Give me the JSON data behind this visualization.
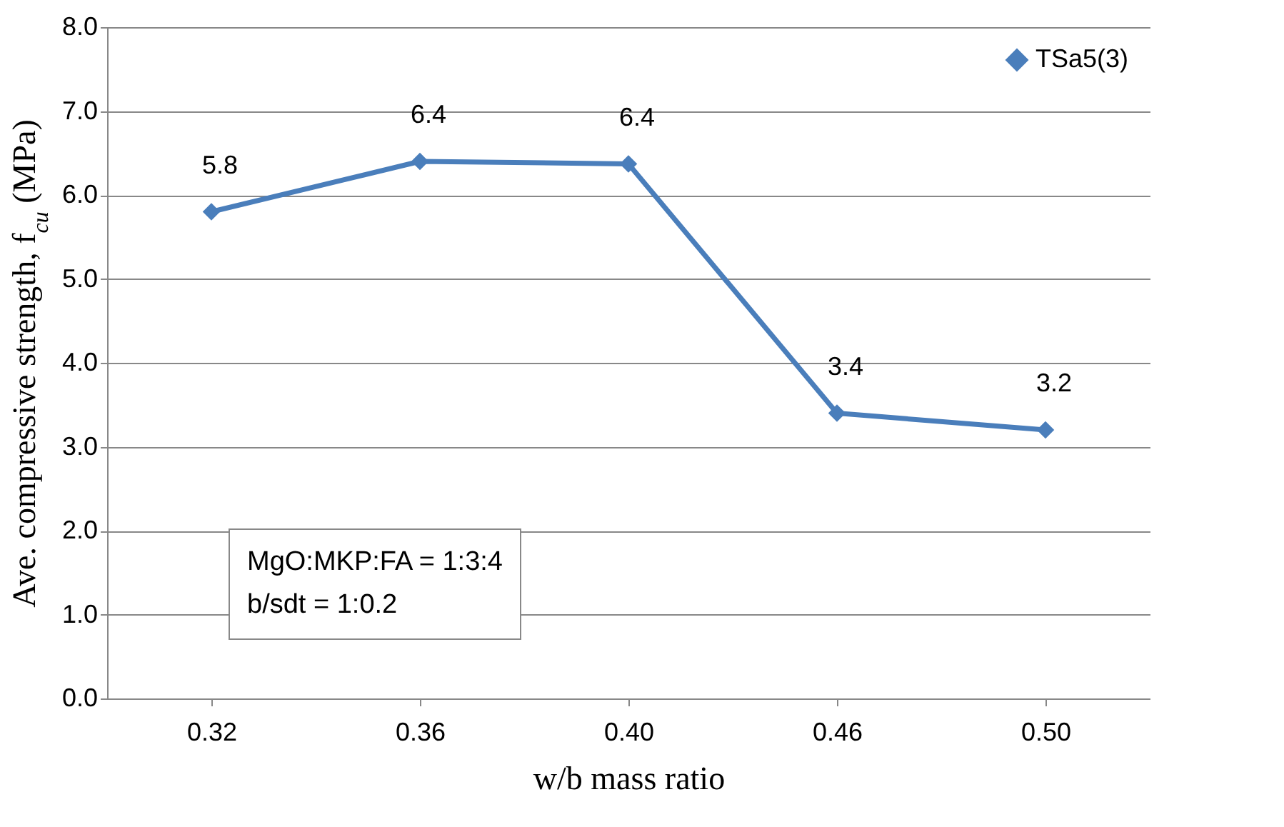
{
  "chart_data": {
    "type": "line",
    "xlabel": "w/b mass ratio",
    "ylabel": "Ave. compressive strength, f$_{cu}$ (MPa)",
    "categories": [
      "0.32",
      "0.36",
      "0.40",
      "0.46",
      "0.50"
    ],
    "series": [
      {
        "name": "TSa5(3)",
        "color": "#4a7ebb",
        "values": [
          5.8,
          6.4,
          6.37,
          3.4,
          3.2
        ],
        "value_labels": [
          "5.8",
          "6.4",
          "6.4",
          "3.4",
          "3.2"
        ]
      }
    ],
    "ylim": [
      0,
      8
    ],
    "yticks": [
      {
        "value": 0,
        "label": "0.0"
      },
      {
        "value": 1,
        "label": "1.0"
      },
      {
        "value": 2,
        "label": "2.0"
      },
      {
        "value": 3,
        "label": "3.0"
      },
      {
        "value": 4,
        "label": "4.0"
      },
      {
        "value": 5,
        "label": "5.0"
      },
      {
        "value": 6,
        "label": "6.0"
      },
      {
        "value": 7,
        "label": "7.0"
      },
      {
        "value": 8,
        "label": "8.0"
      }
    ],
    "grid": "y",
    "legend": "top right",
    "marker": "diamond",
    "line_style": "solid",
    "annotations": [
      "MgO:MKP:FA = 1:3:4",
      "b/sdt = 1:0.2"
    ]
  }
}
